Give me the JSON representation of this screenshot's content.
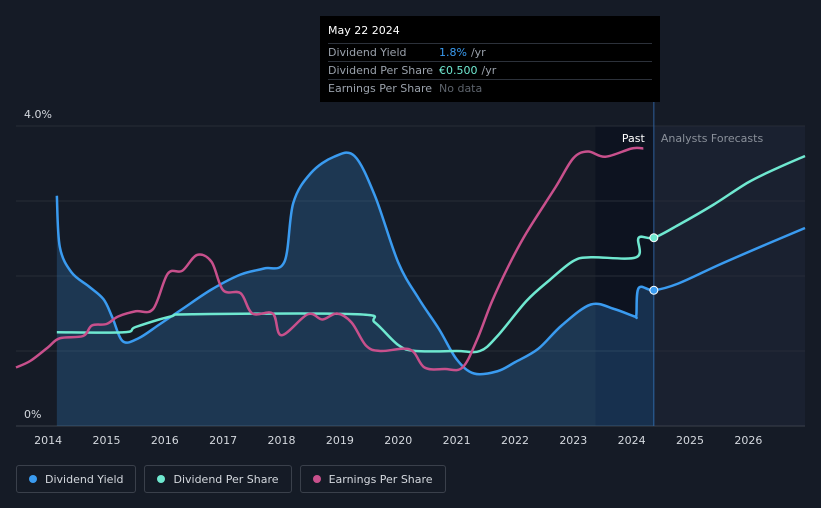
{
  "tooltip": {
    "date": "May 22 2024",
    "rows": [
      {
        "label": "Dividend Yield",
        "value": "1.8%",
        "unit": "/yr",
        "color": "#3a9bf0"
      },
      {
        "label": "Dividend Per Share",
        "value": "€0.500",
        "unit": "/yr",
        "color": "#6fe8d0"
      },
      {
        "label": "Earnings Per Share",
        "value": "No data",
        "unit": "",
        "color": "#5d636c"
      }
    ]
  },
  "sections": {
    "past": "Past",
    "forecast": "Analysts Forecasts"
  },
  "legend": [
    {
      "label": "Dividend Yield",
      "color": "#3a9bf0"
    },
    {
      "label": "Dividend Per Share",
      "color": "#6fe8d0"
    },
    {
      "label": "Earnings Per Share",
      "color": "#c8508c"
    }
  ],
  "chart_data": {
    "type": "line",
    "xlim": [
      2013.45,
      2026.97
    ],
    "ylim": [
      0,
      4.0
    ],
    "x_ticks": [
      "2014",
      "2015",
      "2016",
      "2017",
      "2018",
      "2019",
      "2020",
      "2021",
      "2022",
      "2023",
      "2024",
      "2025",
      "2026"
    ],
    "y_tick_labels": [
      {
        "v": 4.0,
        "label": "4.0%"
      },
      {
        "v": 0,
        "label": "0%"
      }
    ],
    "highlight_range": [
      2023.38,
      2024.38
    ],
    "series": [
      {
        "name": "Dividend Yield",
        "color": "#3a9bf0",
        "area": true,
        "points": [
          [
            2014.15,
            3.07
          ],
          [
            2014.2,
            2.39
          ],
          [
            2014.4,
            2.05
          ],
          [
            2014.7,
            1.86
          ],
          [
            2014.95,
            1.69
          ],
          [
            2015.1,
            1.45
          ],
          [
            2015.28,
            1.13
          ],
          [
            2015.55,
            1.17
          ],
          [
            2015.9,
            1.35
          ],
          [
            2016.3,
            1.56
          ],
          [
            2016.8,
            1.82
          ],
          [
            2017.3,
            2.02
          ],
          [
            2017.7,
            2.1
          ],
          [
            2018.05,
            2.19
          ],
          [
            2018.2,
            2.97
          ],
          [
            2018.5,
            3.37
          ],
          [
            2018.9,
            3.59
          ],
          [
            2019.25,
            3.6
          ],
          [
            2019.6,
            3.07
          ],
          [
            2020.0,
            2.18
          ],
          [
            2020.35,
            1.7
          ],
          [
            2020.7,
            1.29
          ],
          [
            2021.0,
            0.89
          ],
          [
            2021.3,
            0.7
          ],
          [
            2021.7,
            0.73
          ],
          [
            2022.0,
            0.85
          ],
          [
            2022.4,
            1.03
          ],
          [
            2022.8,
            1.34
          ],
          [
            2023.3,
            1.62
          ],
          [
            2023.7,
            1.56
          ],
          [
            2024.05,
            1.46
          ],
          [
            2024.08,
            1.48
          ],
          [
            2024.12,
            1.84
          ],
          [
            2024.38,
            1.81
          ],
          [
            2024.8,
            1.9
          ],
          [
            2025.5,
            2.15
          ],
          [
            2026.3,
            2.42
          ],
          [
            2026.97,
            2.64
          ]
        ]
      },
      {
        "name": "Dividend Per Share",
        "color": "#6fe8d0",
        "points": [
          [
            2014.15,
            1.25
          ],
          [
            2015.3,
            1.25
          ],
          [
            2015.5,
            1.32
          ],
          [
            2016.1,
            1.46
          ],
          [
            2016.5,
            1.49
          ],
          [
            2019.3,
            1.49
          ],
          [
            2019.6,
            1.38
          ],
          [
            2020.0,
            1.08
          ],
          [
            2020.3,
            1.0
          ],
          [
            2021.0,
            1.0
          ],
          [
            2021.4,
            1.0
          ],
          [
            2021.7,
            1.2
          ],
          [
            2022.2,
            1.67
          ],
          [
            2022.6,
            1.95
          ],
          [
            2023.0,
            2.2
          ],
          [
            2023.3,
            2.25
          ],
          [
            2024.08,
            2.25
          ],
          [
            2024.12,
            2.51
          ],
          [
            2024.38,
            2.51
          ],
          [
            2024.8,
            2.68
          ],
          [
            2025.4,
            2.95
          ],
          [
            2026.0,
            3.25
          ],
          [
            2026.5,
            3.44
          ],
          [
            2026.97,
            3.6
          ]
        ]
      },
      {
        "name": "Earnings Per Share",
        "color": "#c8508c",
        "points": [
          [
            2013.45,
            0.78
          ],
          [
            2013.7,
            0.87
          ],
          [
            2014.0,
            1.05
          ],
          [
            2014.2,
            1.17
          ],
          [
            2014.6,
            1.2
          ],
          [
            2014.75,
            1.34
          ],
          [
            2015.0,
            1.36
          ],
          [
            2015.2,
            1.46
          ],
          [
            2015.5,
            1.53
          ],
          [
            2015.8,
            1.56
          ],
          [
            2016.05,
            2.03
          ],
          [
            2016.3,
            2.07
          ],
          [
            2016.55,
            2.28
          ],
          [
            2016.8,
            2.19
          ],
          [
            2017.0,
            1.81
          ],
          [
            2017.3,
            1.77
          ],
          [
            2017.5,
            1.5
          ],
          [
            2017.85,
            1.5
          ],
          [
            2018.0,
            1.21
          ],
          [
            2018.45,
            1.49
          ],
          [
            2018.7,
            1.42
          ],
          [
            2018.95,
            1.5
          ],
          [
            2019.2,
            1.38
          ],
          [
            2019.45,
            1.07
          ],
          [
            2019.7,
            1.0
          ],
          [
            2020.2,
            1.02
          ],
          [
            2020.45,
            0.78
          ],
          [
            2020.8,
            0.76
          ],
          [
            2021.1,
            0.78
          ],
          [
            2021.35,
            1.15
          ],
          [
            2021.6,
            1.65
          ],
          [
            2021.9,
            2.15
          ],
          [
            2022.2,
            2.58
          ],
          [
            2022.7,
            3.19
          ],
          [
            2023.0,
            3.57
          ],
          [
            2023.25,
            3.66
          ],
          [
            2023.55,
            3.59
          ],
          [
            2024.0,
            3.7
          ],
          [
            2024.2,
            3.7
          ]
        ]
      }
    ],
    "markers": [
      {
        "series": "Dividend Yield",
        "x": 2024.38,
        "y": 1.81
      },
      {
        "series": "Dividend Per Share",
        "x": 2024.38,
        "y": 2.51
      }
    ]
  }
}
